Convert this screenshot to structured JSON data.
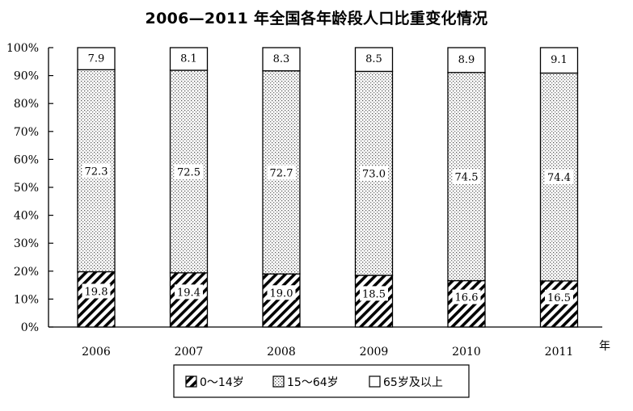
{
  "chart_data": {
    "type": "bar",
    "stacked": true,
    "title": "2006—2011 年全国各年龄段人口比重变化情况",
    "x_unit": "年",
    "categories": [
      "2006",
      "2007",
      "2008",
      "2009",
      "2010",
      "2011"
    ],
    "series": [
      {
        "name": "0～14岁",
        "pattern": "diagonal-hatch",
        "values": [
          19.8,
          19.4,
          19.0,
          18.5,
          16.6,
          16.5
        ]
      },
      {
        "name": "15～64岁",
        "pattern": "dotted",
        "values": [
          72.3,
          72.5,
          72.7,
          73.0,
          74.5,
          74.4
        ]
      },
      {
        "name": "65岁及以上",
        "pattern": "blank",
        "values": [
          7.9,
          8.1,
          8.3,
          8.5,
          8.9,
          9.1
        ]
      }
    ],
    "data_labels": [
      [
        "19.8",
        "19.4",
        "19.0",
        "18.5",
        "16.6",
        "16.5"
      ],
      [
        "72.3",
        "72.5",
        "72.7",
        "73.0",
        "74.5",
        "74.4"
      ],
      [
        "7.9",
        "8.1",
        "8.3",
        "8.5",
        "8.9",
        "9.1"
      ]
    ],
    "y_ticks": [
      "0%",
      "10%",
      "20%",
      "30%",
      "40%",
      "50%",
      "60%",
      "70%",
      "80%",
      "90%",
      "100%"
    ],
    "ylim": [
      0,
      100
    ],
    "legend_position": "bottom"
  }
}
